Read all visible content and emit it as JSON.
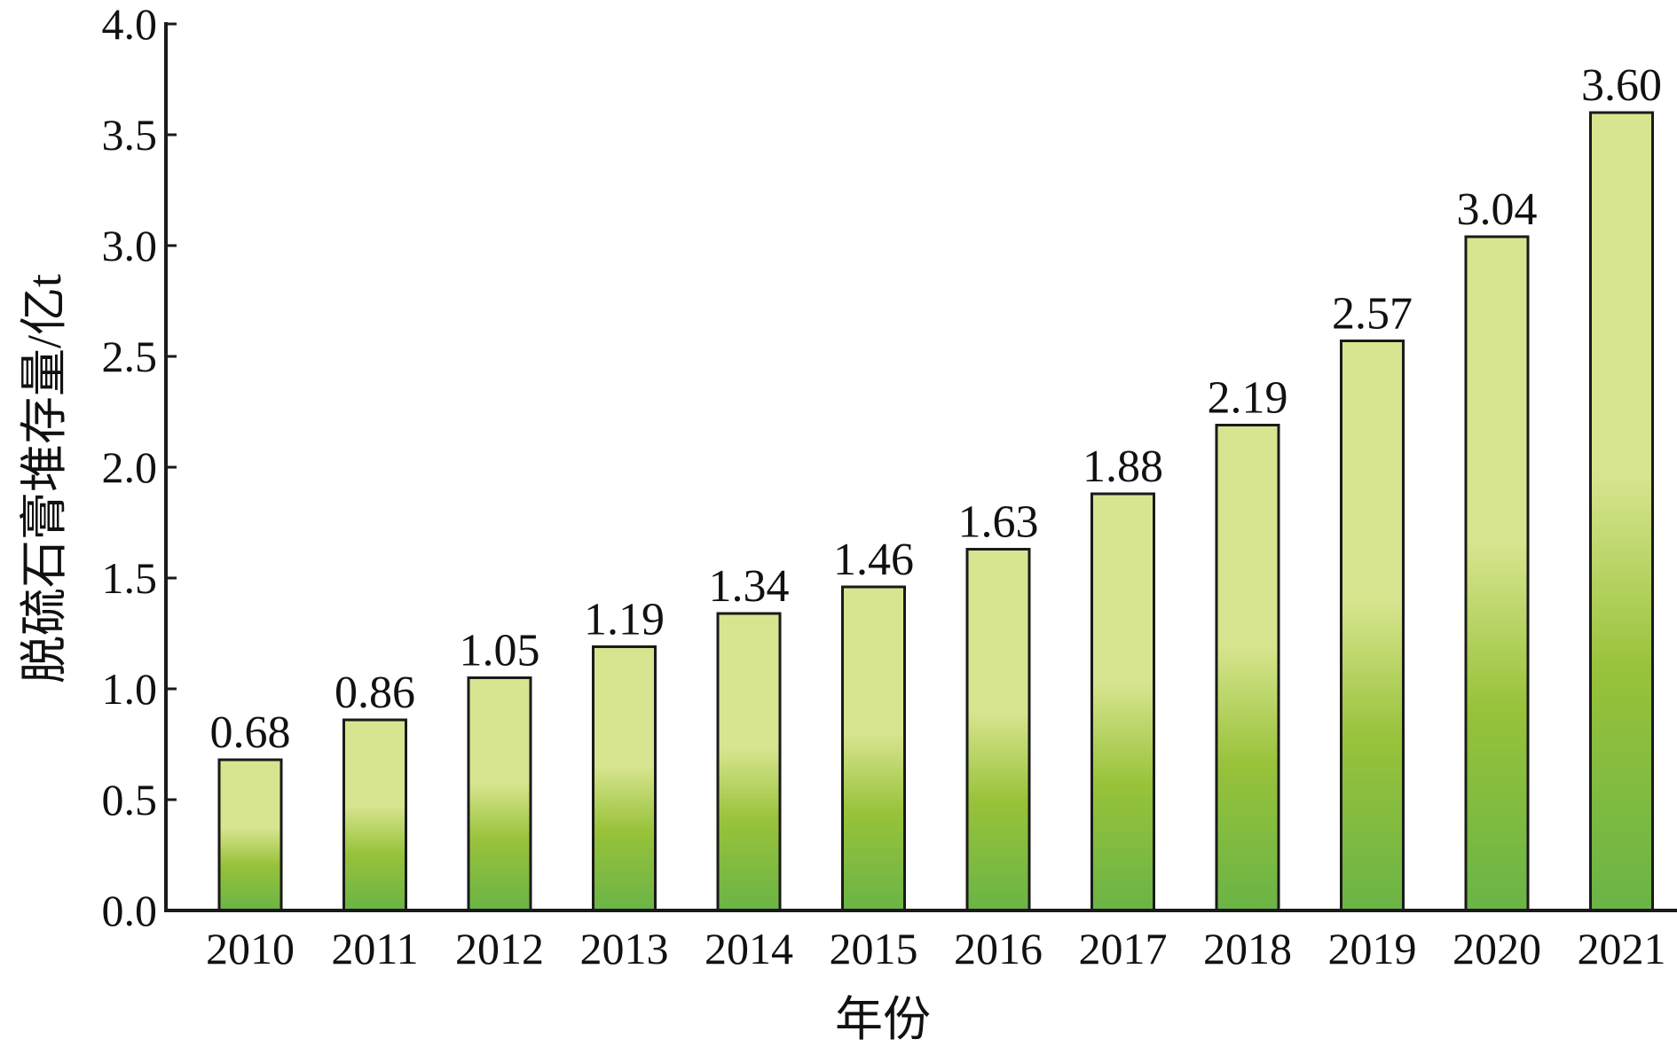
{
  "chart_data": {
    "type": "bar",
    "title": "",
    "xlabel": "年份",
    "ylabel": "脱硫石膏堆存量/亿t",
    "categories": [
      "2010",
      "2011",
      "2012",
      "2013",
      "2014",
      "2015",
      "2016",
      "2017",
      "2018",
      "2019",
      "2020",
      "2021"
    ],
    "values": [
      0.68,
      0.86,
      1.05,
      1.19,
      1.34,
      1.46,
      1.63,
      1.88,
      2.19,
      2.57,
      3.04,
      3.6
    ],
    "value_labels": [
      "0.68",
      "0.86",
      "1.05",
      "1.19",
      "1.34",
      "1.46",
      "1.63",
      "1.88",
      "2.19",
      "2.57",
      "3.04",
      "3.60"
    ],
    "ylim": [
      0,
      4.0
    ],
    "yticks": [
      "0.0",
      "0.5",
      "1.0",
      "1.5",
      "2.0",
      "2.5",
      "3.0",
      "3.5",
      "4.0"
    ],
    "grid": false,
    "legend": "none",
    "colors": {
      "bar_top": "#d8e590",
      "bar_mid": "#98c23a",
      "bar_bottom": "#6ab446",
      "axis": "#1a1a1a"
    }
  }
}
